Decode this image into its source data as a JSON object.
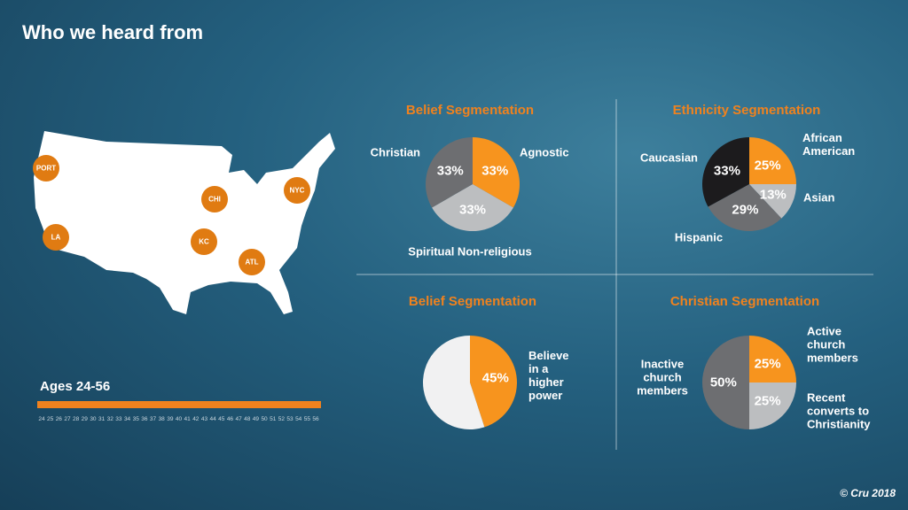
{
  "title": "Who we heard from",
  "map": {
    "cities": [
      "PORT",
      "CHI",
      "NYC",
      "LA",
      "KC",
      "ATL"
    ]
  },
  "ages": {
    "label": "Ages 24-56",
    "ticks": [
      24,
      25,
      26,
      27,
      28,
      29,
      30,
      31,
      32,
      33,
      34,
      35,
      36,
      37,
      38,
      39,
      40,
      41,
      42,
      43,
      44,
      45,
      46,
      47,
      48,
      49,
      50,
      51,
      52,
      53,
      54,
      55,
      56
    ]
  },
  "copyright": "© Cru 2018",
  "chart_data": [
    {
      "type": "pie",
      "title": "Belief Segmentation",
      "categories": [
        "Agnostic",
        "Spiritual Non-religious",
        "Christian"
      ],
      "values": [
        33,
        33,
        33
      ],
      "value_labels": [
        "33%",
        "33%",
        "33%"
      ],
      "colors": [
        "#f7941e",
        "#bcbec0",
        "#6d6e71"
      ]
    },
    {
      "type": "pie",
      "title": "Ethnicity Segmentation",
      "categories": [
        "African American",
        "Asian",
        "Hispanic",
        "Caucasian"
      ],
      "values": [
        25,
        13,
        29,
        33
      ],
      "value_labels": [
        "25%",
        "13%",
        "29%",
        "33%"
      ],
      "colors": [
        "#f7941e",
        "#bcbec0",
        "#6d6e71",
        "#1c1b1d"
      ]
    },
    {
      "type": "pie",
      "title": "Belief Segmentation",
      "categories": [
        "Believe in a higher power",
        null
      ],
      "values": [
        45,
        55
      ],
      "value_labels": [
        "45%",
        null
      ],
      "colors": [
        "#f7941e",
        "#f1f1f2"
      ]
    },
    {
      "type": "pie",
      "title": "Christian Segmentation",
      "categories": [
        "Active church members",
        "Recent converts to Christianity",
        "Inactive church members"
      ],
      "values": [
        25,
        25,
        50
      ],
      "value_labels": [
        "25%",
        "25%",
        "50%"
      ],
      "colors": [
        "#f7941e",
        "#bcbec0",
        "#6d6e71"
      ]
    }
  ]
}
